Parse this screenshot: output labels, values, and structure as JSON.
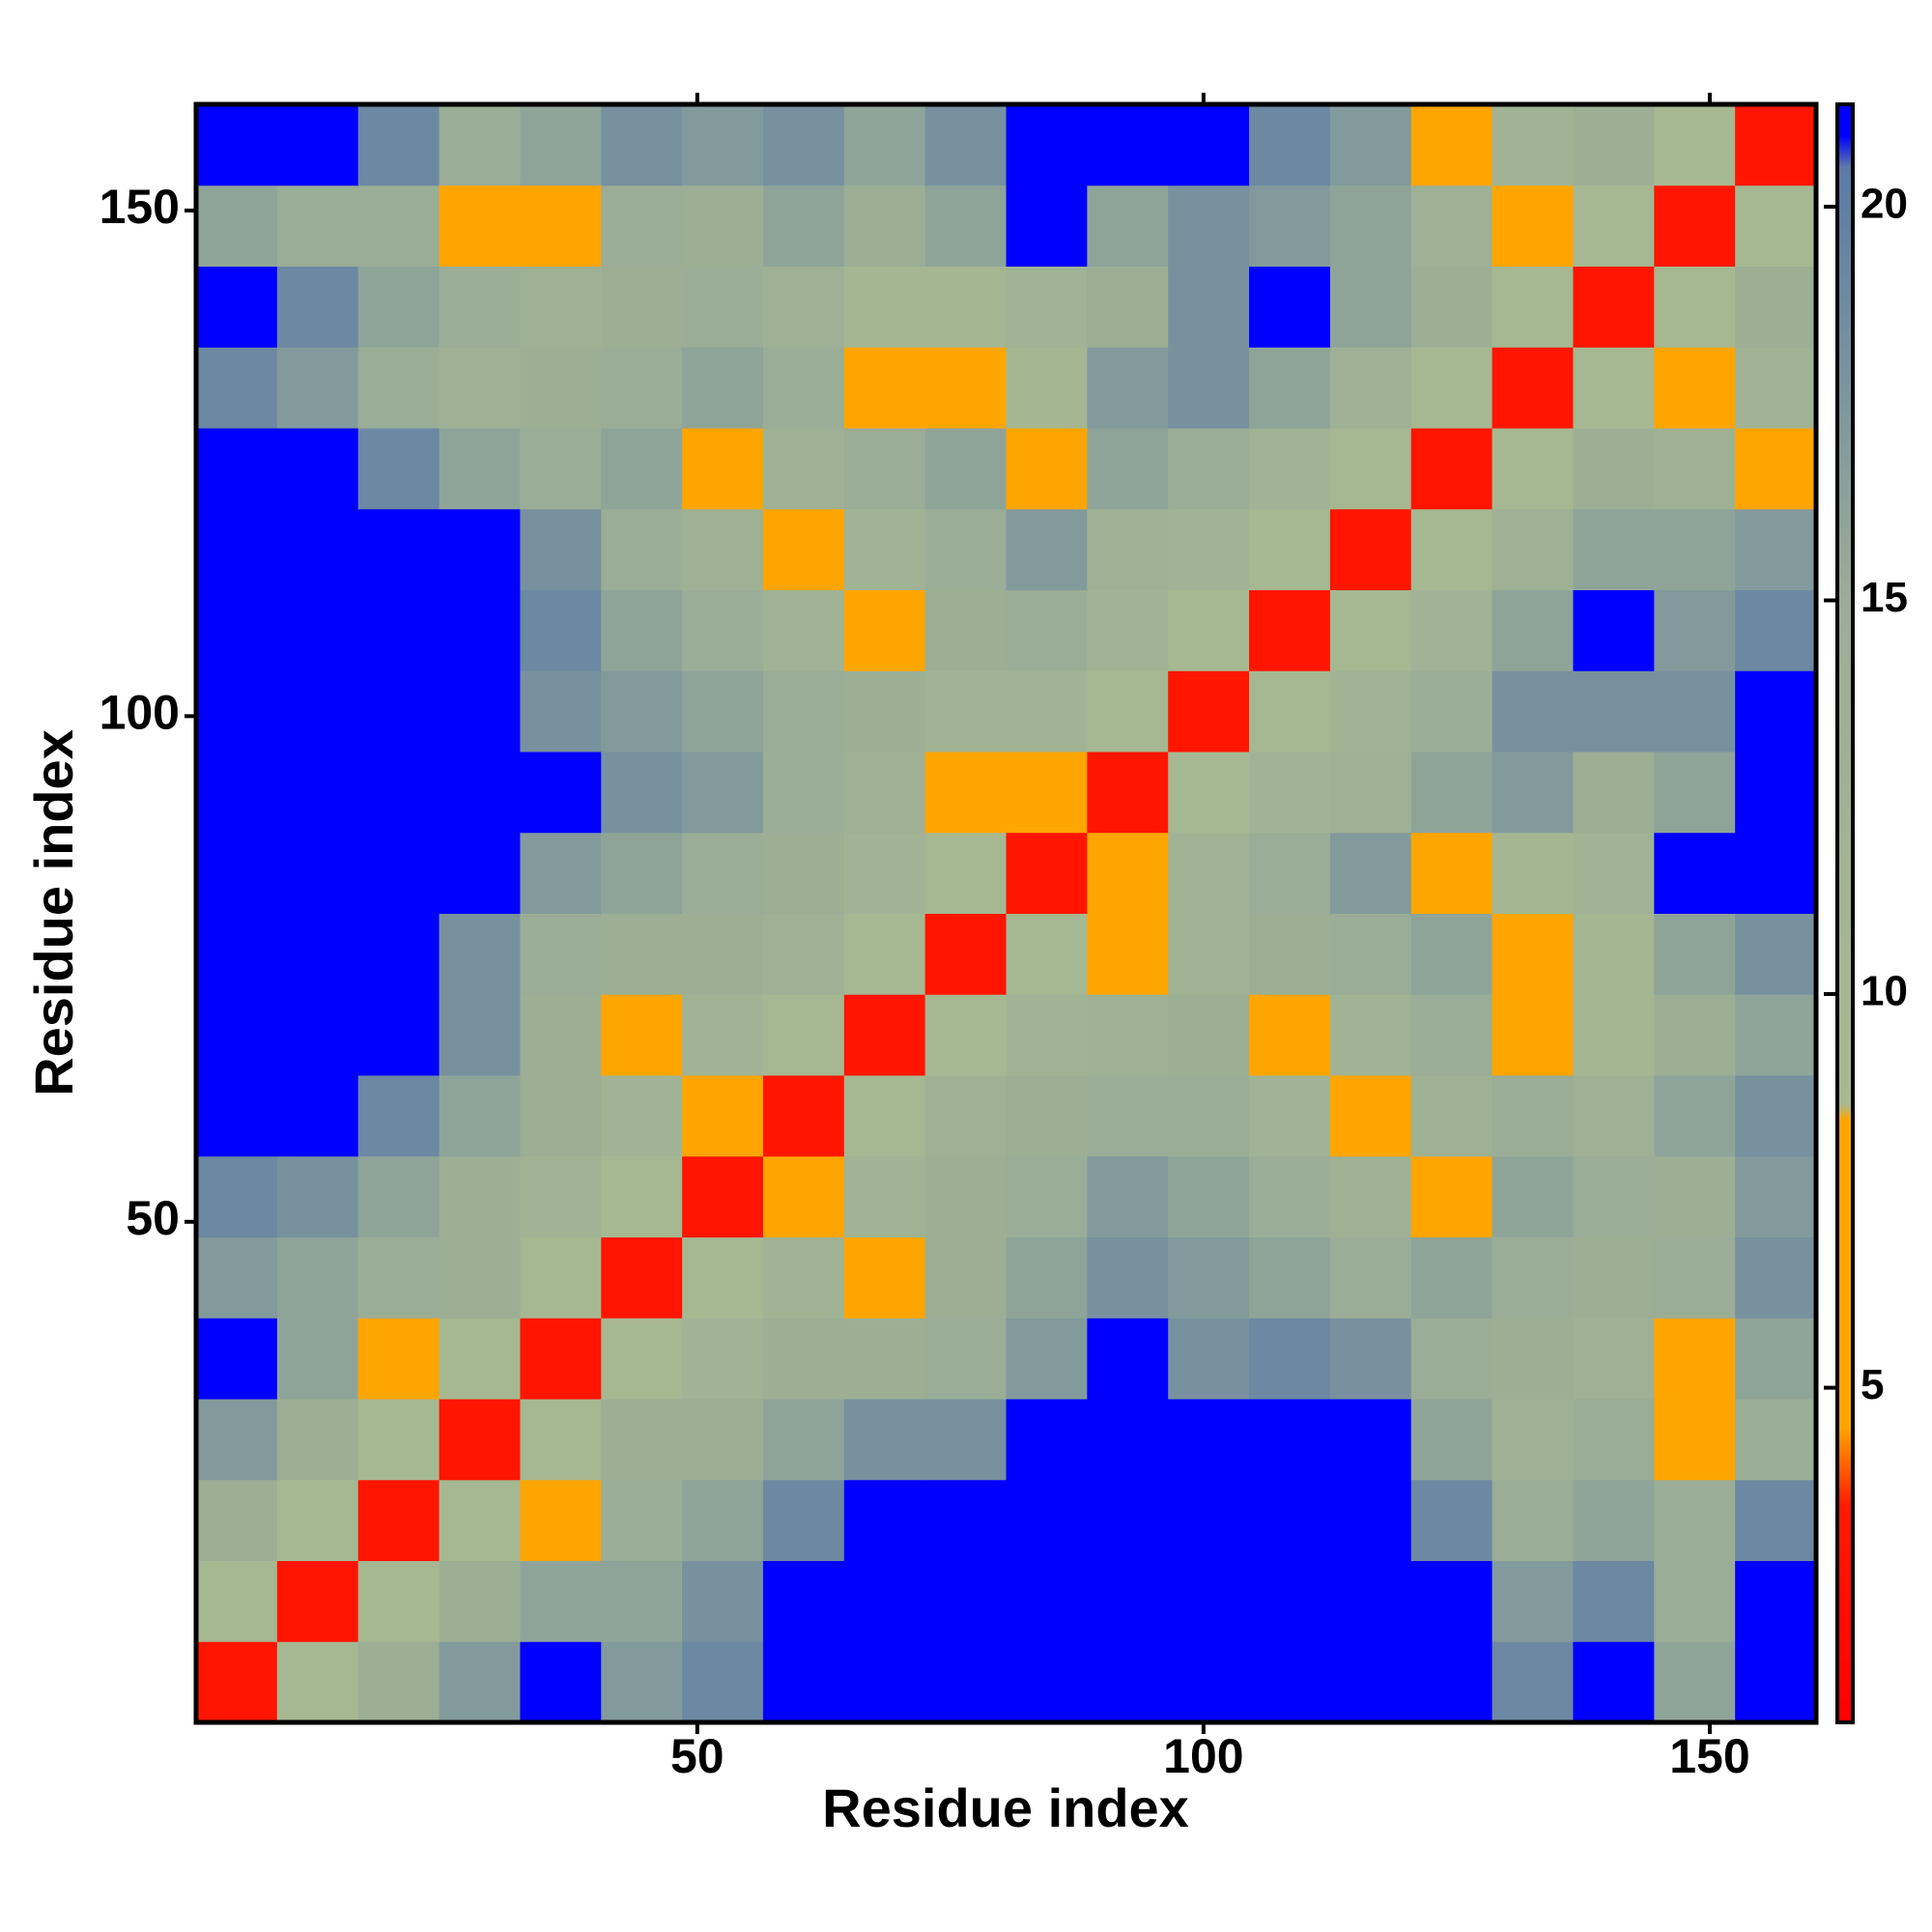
{
  "chart_data": {
    "type": "heatmap",
    "xlabel": "Residue index",
    "ylabel": "Residue index",
    "xlim": [
      0.5,
      160.5
    ],
    "ylim": [
      0.5,
      160.5
    ],
    "xticks": [
      50,
      100,
      150
    ],
    "yticks": [
      50,
      100,
      150
    ],
    "xbins": [
      0.5,
      8.5,
      16.5,
      24.5,
      32.5,
      40.5,
      48.5,
      56.5,
      64.5,
      72.5,
      80.5,
      88.5,
      96.5,
      104.5,
      112.5,
      120.5,
      128.5,
      136.5,
      144.5,
      152.5,
      160.5
    ],
    "ybins": [
      0.5,
      8.5,
      16.5,
      24.5,
      32.5,
      40.5,
      48.5,
      56.5,
      64.5,
      72.5,
      80.5,
      88.5,
      96.5,
      104.5,
      112.5,
      120.5,
      128.5,
      136.5,
      144.5,
      152.5,
      160.5
    ],
    "values": [
      [
        3,
        9,
        14,
        17,
        21,
        17,
        19,
        21,
        21,
        21,
        21,
        21,
        21,
        21,
        21,
        21,
        19,
        21,
        16,
        21
      ],
      [
        9,
        3,
        9,
        14,
        16,
        16,
        18,
        21,
        21,
        21,
        21,
        21,
        21,
        21,
        21,
        21,
        17,
        19,
        15,
        21
      ],
      [
        14,
        9,
        3,
        9,
        7,
        15,
        16,
        19,
        21,
        21,
        21,
        21,
        21,
        21,
        21,
        19,
        15,
        16,
        15,
        19
      ],
      [
        17,
        14,
        9,
        3,
        9,
        14,
        14,
        16,
        18,
        18,
        21,
        21,
        21,
        21,
        21,
        16,
        13,
        15,
        8,
        15
      ],
      [
        21,
        16,
        7,
        9,
        3,
        9,
        12,
        14,
        14,
        15,
        17,
        21,
        18,
        19,
        18,
        15,
        14,
        13,
        8,
        16
      ],
      [
        17,
        16,
        15,
        14,
        9,
        3,
        9,
        12,
        8,
        14,
        16,
        18,
        17,
        16,
        15,
        16,
        15,
        14,
        15,
        18
      ],
      [
        19,
        18,
        16,
        14,
        12,
        9,
        3,
        7,
        12,
        14,
        15,
        17,
        16,
        15,
        13,
        8,
        16,
        15,
        14,
        17
      ],
      [
        21,
        21,
        19,
        16,
        14,
        12,
        7,
        3,
        9,
        13,
        14,
        15,
        15,
        12,
        7,
        13,
        15,
        13,
        16,
        18
      ],
      [
        21,
        21,
        21,
        18,
        14,
        8,
        12,
        9,
        3,
        9,
        12,
        13,
        14,
        8,
        12,
        15,
        8,
        10,
        14,
        16
      ],
      [
        21,
        21,
        21,
        18,
        15,
        14,
        14,
        13,
        9,
        3,
        9,
        7,
        12,
        14,
        15,
        16,
        7,
        10,
        16,
        18
      ],
      [
        21,
        21,
        21,
        21,
        17,
        16,
        15,
        14,
        12,
        9,
        3,
        7,
        12,
        15,
        17,
        8,
        10,
        12,
        21,
        21
      ],
      [
        21,
        21,
        21,
        21,
        21,
        18,
        17,
        15,
        13,
        7,
        7,
        3,
        9,
        12,
        13,
        16,
        17,
        14,
        16,
        21
      ],
      [
        21,
        21,
        21,
        21,
        18,
        17,
        16,
        15,
        14,
        12,
        12,
        9,
        3,
        9,
        12,
        15,
        18,
        18,
        18,
        21
      ],
      [
        21,
        21,
        21,
        21,
        19,
        16,
        15,
        12,
        8,
        14,
        15,
        12,
        9,
        3,
        9,
        12,
        16,
        21,
        17,
        19
      ],
      [
        21,
        21,
        21,
        21,
        18,
        15,
        13,
        7,
        12,
        15,
        17,
        13,
        12,
        9,
        3,
        9,
        13,
        16,
        16,
        17
      ],
      [
        21,
        21,
        19,
        16,
        15,
        16,
        8,
        13,
        15,
        16,
        8,
        16,
        15,
        12,
        9,
        3,
        9,
        14,
        13,
        8
      ],
      [
        19,
        17,
        15,
        13,
        14,
        15,
        16,
        15,
        8,
        7,
        10,
        17,
        18,
        16,
        13,
        9,
        3,
        9,
        7,
        12
      ],
      [
        21,
        19,
        16,
        15,
        13,
        14,
        15,
        13,
        10,
        10,
        12,
        14,
        18,
        21,
        16,
        14,
        9,
        3,
        9,
        14
      ],
      [
        16,
        15,
        15,
        8,
        8,
        15,
        14,
        16,
        14,
        16,
        21,
        16,
        18,
        17,
        16,
        13,
        7,
        9,
        3,
        9
      ],
      [
        21,
        21,
        19,
        15,
        16,
        18,
        17,
        18,
        16,
        18,
        21,
        21,
        21,
        19,
        17,
        8,
        12,
        14,
        9,
        3
      ]
    ],
    "clim": [
      0.75,
      21.3
    ],
    "colorbar_ticks": [
      5,
      10,
      15,
      20
    ],
    "colorscale": [
      {
        "value": 0.75,
        "color": "#ff0000"
      },
      {
        "value": 3.5,
        "color": "#ff1a00"
      },
      {
        "value": 4.5,
        "color": "#ffa500"
      },
      {
        "value": 8.4,
        "color": "#ffa500"
      },
      {
        "value": 8.6,
        "color": "#a7b991"
      },
      {
        "value": 15,
        "color": "#9aad96"
      },
      {
        "value": 20.5,
        "color": "#5b7aa6"
      },
      {
        "value": 20.9,
        "color": "#0000ff"
      },
      {
        "value": 21.3,
        "color": "#0000ff"
      }
    ]
  }
}
